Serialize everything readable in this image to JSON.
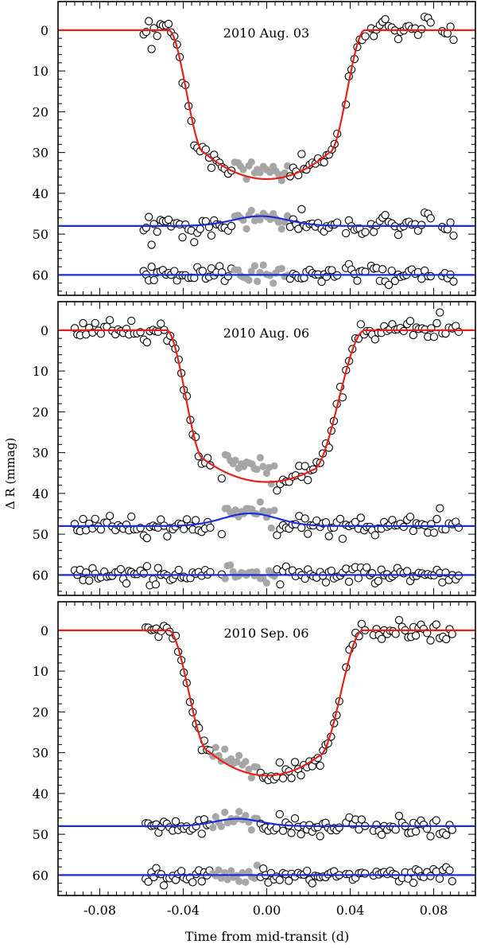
{
  "chart_data": {
    "type": "scatter",
    "xlabel": "Time from mid-transit (d)",
    "ylabel": "Δ R (mmag)",
    "xlim": [
      -0.1,
      0.1
    ],
    "ylim": [
      65,
      -7
    ],
    "yaxis_inverted": true,
    "xticks": [
      -0.08,
      -0.04,
      0.0,
      0.04,
      0.08
    ],
    "xtick_labels": [
      "-0.08",
      "-0.04",
      "0.00",
      "0.04",
      "0.08"
    ],
    "yticks": [
      0,
      10,
      20,
      30,
      40,
      50,
      60
    ],
    "colors": {
      "model": "#e8201c",
      "residual_model": "#1c2cd8",
      "points": "#000000",
      "spot_points": "#a6a6a6"
    },
    "panels": [
      {
        "title": "2010 Aug. 03",
        "data_start": -0.059,
        "data_end": 0.09,
        "gaps": [
          [
            0.035,
            0.037
          ],
          [
            0.048,
            0.05
          ],
          [
            0.08,
            0.083
          ]
        ],
        "ingress": [
          -0.047,
          -0.03
        ],
        "egress": [
          0.03,
          0.047
        ],
        "depth": 36.5,
        "bottom_curvature": 6.5,
        "spot_center": -0.003,
        "spot_width": 0.013,
        "spot_amplitude": 2.4,
        "spot_range": [
          -0.016,
          0.01
        ],
        "residual_offset": 48,
        "residual2_offset": 60,
        "scatter": 1.3,
        "seed": 11
      },
      {
        "title": "2010 Aug. 06",
        "data_start": -0.092,
        "data_end": 0.092,
        "gaps": [
          [
            -0.027,
            -0.022
          ]
        ],
        "ingress": [
          -0.048,
          -0.03
        ],
        "egress": [
          0.022,
          0.047
        ],
        "depth": 37.2,
        "bottom_curvature": 5.5,
        "spot_center": -0.008,
        "spot_width": 0.013,
        "spot_amplitude": 3.1,
        "spot_range": [
          -0.021,
          0.004
        ],
        "residual_offset": 48,
        "residual2_offset": 60,
        "scatter": 1.2,
        "seed": 23
      },
      {
        "title": "2010 Sep. 06",
        "data_start": -0.058,
        "data_end": 0.09,
        "gaps": [
          [
            0.035,
            0.038
          ],
          [
            0.048,
            0.051
          ]
        ],
        "ingress": [
          -0.047,
          -0.028
        ],
        "egress": [
          0.025,
          0.046
        ],
        "depth": 35.6,
        "bottom_curvature": 6.0,
        "spot_center": -0.014,
        "spot_width": 0.011,
        "spot_amplitude": 1.8,
        "spot_range": [
          -0.026,
          -0.004
        ],
        "residual_offset": 48,
        "residual2_offset": 60,
        "scatter": 1.2,
        "seed": 37
      }
    ]
  }
}
